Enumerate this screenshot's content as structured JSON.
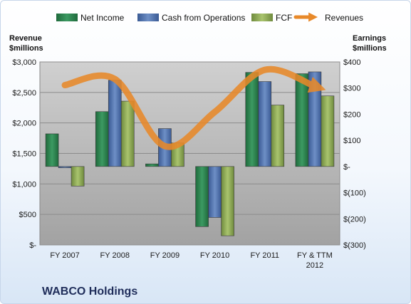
{
  "chart_data": {
    "type": "bar",
    "title": "WABCO Holdings",
    "categories": [
      "FY 2007",
      "FY 2008",
      "FY 2009",
      "FY 2010",
      "FY 2011",
      "FY & TTM 2012"
    ],
    "series": [
      {
        "name": "Net Income",
        "axis": "right",
        "color": "#2e7d4f",
        "values": [
          125,
          210,
          10,
          -230,
          360,
          355
        ]
      },
      {
        "name": "Cash from Operations",
        "axis": "right",
        "color": "#4e6ea8",
        "values": [
          -5,
          330,
          145,
          -195,
          325,
          362
        ]
      },
      {
        "name": "FCF",
        "axis": "right",
        "color": "#8ea65a",
        "values": [
          -75,
          250,
          90,
          -265,
          235,
          270
        ]
      }
    ],
    "line": {
      "name": "Revenues",
      "axis": "left",
      "color": "#e8892a",
      "values": [
        2620,
        2720,
        1620,
        2180,
        2870,
        2600
      ]
    },
    "left_axis": {
      "label": [
        "Revenue",
        "$millions"
      ],
      "ylim": [
        0,
        3000
      ],
      "ticks": [
        "$-",
        "$500",
        "$1,000",
        "$1,500",
        "$2,000",
        "$2,500",
        "$3,000"
      ]
    },
    "right_axis": {
      "label": [
        "Earnings",
        "$millions"
      ],
      "ylim": [
        -300,
        400
      ],
      "ticks": [
        "$(300)",
        "$(200)",
        "$(100)",
        "$-",
        "$100",
        "$200",
        "$300",
        "$400"
      ]
    },
    "x_ticks": [
      [
        "FY 2007"
      ],
      [
        "FY 2008"
      ],
      [
        "FY 2009"
      ],
      [
        "FY 2010"
      ],
      [
        "FY 2011"
      ],
      [
        "FY & TTM",
        "2012"
      ]
    ],
    "legend": [
      "Net Income",
      "Cash from Operations",
      "FCF",
      "Revenues"
    ],
    "legend_position": "top",
    "grid": true
  }
}
